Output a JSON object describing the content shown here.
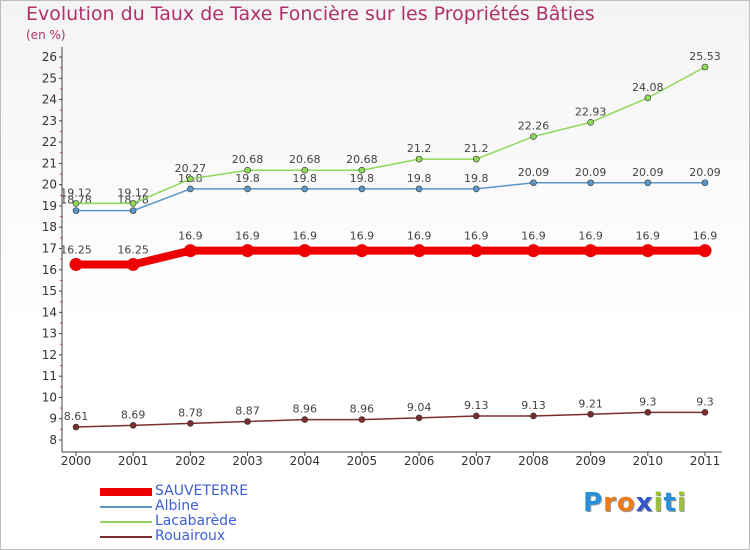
{
  "title": "Evolution du Taux de Taxe Foncière sur les Propriétés Bâties",
  "unit_label": "(en %)",
  "logo": {
    "letters": [
      "P",
      "r",
      "o",
      "x",
      "i",
      "t",
      "i"
    ],
    "colors": [
      "#2a8fd8",
      "#ee7b1a",
      "#ee7b1a",
      "#3355cc",
      "#9cc23a",
      "#2a8fd8",
      "#9cc23a"
    ]
  },
  "chart_data": {
    "type": "line",
    "title": "Evolution du Taux de Taxe Foncière sur les Propriétés Bâties",
    "ylabel": "(en %)",
    "xlabel": "",
    "x": [
      "2000",
      "2001",
      "2002",
      "2003",
      "2004",
      "2005",
      "2006",
      "2007",
      "2008",
      "2009",
      "2010",
      "2011"
    ],
    "ylim": [
      8,
      26
    ],
    "yticks": [
      "8",
      "9",
      "10",
      "11",
      "12",
      "13",
      "14",
      "15",
      "16",
      "17",
      "18",
      "19",
      "20",
      "21",
      "22",
      "23",
      "24",
      "25",
      "26"
    ],
    "grid": false,
    "series": [
      {
        "name": "SAUVETERRE",
        "color": "#ee0000",
        "bold": true,
        "values": [
          16.25,
          16.25,
          16.9,
          16.9,
          16.9,
          16.9,
          16.9,
          16.9,
          16.9,
          16.9,
          16.9,
          16.9
        ],
        "labels": [
          "16.25",
          "16.25",
          "16.9",
          "16.9",
          "16.9",
          "16.9",
          "16.9",
          "16.9",
          "16.9",
          "16.9",
          "16.9",
          "16.9"
        ]
      },
      {
        "name": "Albine",
        "color": "#5b97c9",
        "values": [
          18.78,
          18.78,
          19.8,
          19.8,
          19.8,
          19.8,
          19.8,
          19.8,
          20.09,
          20.09,
          20.09,
          20.09
        ],
        "labels": [
          "18.78",
          "18.78",
          "19.8",
          "19.8",
          "19.8",
          "19.8",
          "19.8",
          "19.8",
          "20.09",
          "20.09",
          "20.09",
          "20.09"
        ]
      },
      {
        "name": "Lacabarède",
        "color": "#8fd85a",
        "values": [
          19.12,
          19.12,
          20.27,
          20.68,
          20.68,
          20.68,
          21.2,
          21.2,
          22.26,
          22.93,
          24.08,
          25.53
        ],
        "labels": [
          "19.12",
          "19.12",
          "20.27",
          "20.68",
          "20.68",
          "20.68",
          "21.2",
          "21.2",
          "22.26",
          "22.93",
          "24.08",
          "25.53"
        ]
      },
      {
        "name": "Rouairoux",
        "color": "#7a2e2e",
        "values": [
          8.61,
          8.69,
          8.78,
          8.87,
          8.96,
          8.96,
          9.04,
          9.13,
          9.13,
          9.21,
          9.3,
          9.3
        ],
        "labels": [
          "8.61",
          "8.69",
          "8.78",
          "8.87",
          "8.96",
          "8.96",
          "9.04",
          "9.13",
          "9.13",
          "9.21",
          "9.3",
          "9.3"
        ]
      }
    ],
    "legend_position": "bottom-left"
  }
}
